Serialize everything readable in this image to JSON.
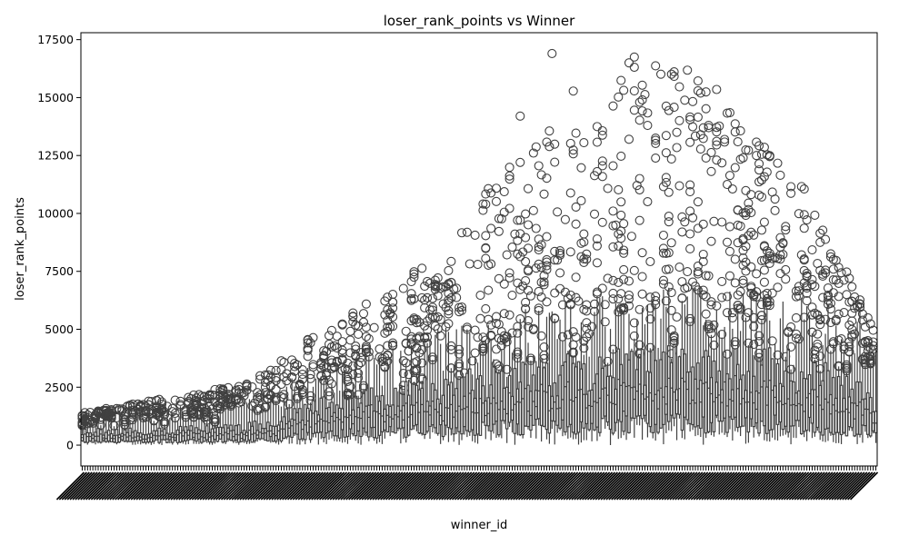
{
  "chart_data": {
    "type": "box",
    "title": "loser_rank_points vs Winner",
    "xlabel": "winner_id",
    "ylabel": "loser_rank_points",
    "ylim": [
      -900,
      17800
    ],
    "yticks": [
      0,
      2500,
      5000,
      7500,
      10000,
      12500,
      15000,
      17500
    ],
    "ytick_labels": [
      "0",
      "2500",
      "5000",
      "7500",
      "10000",
      "12500",
      "15000",
      "17500"
    ],
    "category_count": 300,
    "x_tick_labels_legible": false,
    "grid": false,
    "legend": "none",
    "colors": {
      "box": "#404040",
      "background": "#ffffff",
      "frame": "#000000"
    },
    "trend": {
      "description_points": [
        {
          "category_fraction": 0.0,
          "typical_q3": 550,
          "typical_whisker": 1150,
          "max_outlier": 1400
        },
        {
          "category_fraction": 0.2,
          "typical_q3": 700,
          "typical_whisker": 1600,
          "max_outlier": 2600
        },
        {
          "category_fraction": 0.3,
          "typical_q3": 1600,
          "typical_whisker": 3000,
          "max_outlier": 5000
        },
        {
          "category_fraction": 0.45,
          "typical_q3": 2400,
          "typical_whisker": 4200,
          "max_outlier": 8200
        },
        {
          "category_fraction": 0.6,
          "typical_q3": 3000,
          "typical_whisker": 5200,
          "max_outlier": 15300
        },
        {
          "category_fraction": 0.75,
          "typical_q3": 3400,
          "typical_whisker": 5800,
          "max_outlier": 16900
        },
        {
          "category_fraction": 0.9,
          "typical_q3": 3200,
          "typical_whisker": 5400,
          "max_outlier": 11800
        },
        {
          "category_fraction": 1.0,
          "typical_q3": 2000,
          "typical_whisker": 5000,
          "max_outlier": 5000
        }
      ],
      "notable_outliers": [
        16750,
        16900,
        16500,
        15350,
        14900,
        14800,
        14200,
        14050,
        13800,
        13500,
        13250,
        8200
      ]
    }
  }
}
